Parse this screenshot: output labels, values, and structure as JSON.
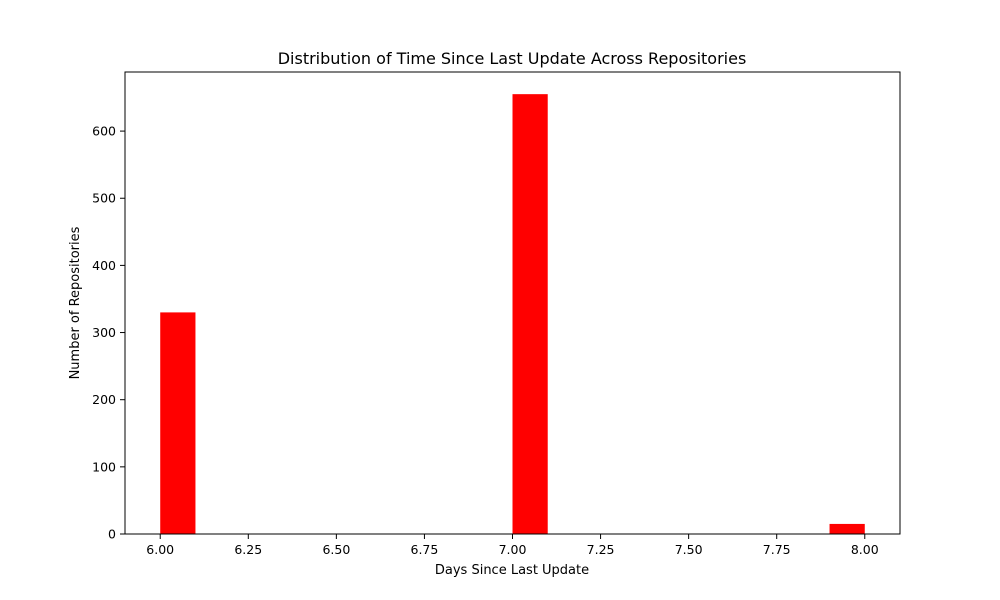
{
  "chart_data": {
    "type": "bar",
    "title": "Distribution of Time Since Last Update Across Repositories",
    "xlabel": "Days Since Last Update",
    "ylabel": "Number of Repositories",
    "xlim": [
      5.9,
      8.1
    ],
    "ylim": [
      0,
      688
    ],
    "xticks": [
      {
        "value": 6.0,
        "label": "6.00"
      },
      {
        "value": 6.25,
        "label": "6.25"
      },
      {
        "value": 6.5,
        "label": "6.50"
      },
      {
        "value": 6.75,
        "label": "6.75"
      },
      {
        "value": 7.0,
        "label": "7.00"
      },
      {
        "value": 7.25,
        "label": "7.25"
      },
      {
        "value": 7.5,
        "label": "7.50"
      },
      {
        "value": 7.75,
        "label": "7.75"
      },
      {
        "value": 8.0,
        "label": "8.00"
      }
    ],
    "yticks": [
      {
        "value": 0,
        "label": "0"
      },
      {
        "value": 100,
        "label": "100"
      },
      {
        "value": 200,
        "label": "200"
      },
      {
        "value": 300,
        "label": "300"
      },
      {
        "value": 400,
        "label": "400"
      },
      {
        "value": 500,
        "label": "500"
      },
      {
        "value": 600,
        "label": "600"
      }
    ],
    "bin_width": 0.1,
    "bars": [
      {
        "x_start": 6.0,
        "x_end": 6.1,
        "value": 330
      },
      {
        "x_start": 7.0,
        "x_end": 7.1,
        "value": 655
      },
      {
        "x_start": 7.9,
        "x_end": 8.0,
        "value": 15
      }
    ],
    "bar_color": "#ff0000",
    "grid": false,
    "legend": false
  }
}
